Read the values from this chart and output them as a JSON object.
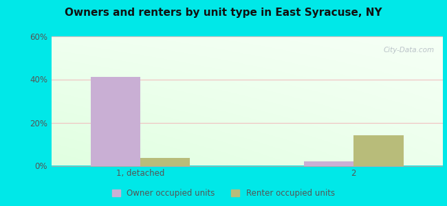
{
  "title": "Owners and renters by unit type in East Syracuse, NY",
  "categories": [
    "1, detached",
    "2"
  ],
  "owner_values": [
    41.0,
    2.0
  ],
  "renter_values": [
    3.5,
    14.0
  ],
  "owner_color": "#c9afd4",
  "renter_color": "#b8bc7a",
  "ylim": [
    0,
    60
  ],
  "yticks": [
    0,
    20,
    40,
    60
  ],
  "ytick_labels": [
    "0%",
    "20%",
    "40%",
    "60%"
  ],
  "outer_bg": "#00e8e8",
  "bar_width": 0.28,
  "x_positions": [
    0.55,
    1.75
  ],
  "xlim": [
    0.05,
    2.25
  ],
  "legend_labels": [
    "Owner occupied units",
    "Renter occupied units"
  ],
  "watermark": "City-Data.com"
}
